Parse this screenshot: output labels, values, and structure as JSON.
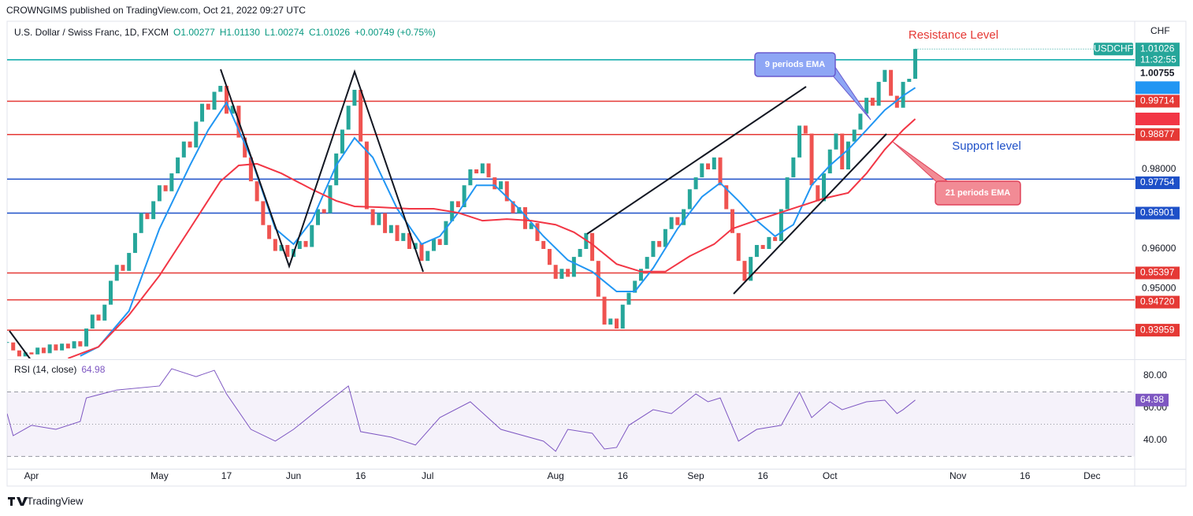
{
  "header": "CROWNGIMS published on TradingView.com, Oct 21, 2022 09:27 UTC",
  "footer": "TradingView",
  "chart_data": [
    {
      "type": "candlestick",
      "legend": {
        "symbol": "U.S. Dollar / Swiss Franc, 1D, FXCM",
        "open": "O1.00277",
        "high": "H1.01130",
        "low": "L1.00274",
        "close": "C1.01026",
        "change": "+0.00749 (+0.75%)"
      },
      "axis_unit": "CHF",
      "symbol_tag": "USDCHF",
      "countdown": "11:32:55",
      "xlim": [
        0,
        185
      ],
      "xticks": [
        {
          "value": 4,
          "label": "Apr"
        },
        {
          "value": 25,
          "label": "May"
        },
        {
          "value": 36,
          "label": "17"
        },
        {
          "value": 47,
          "label": "Jun"
        },
        {
          "value": 58,
          "label": "16"
        },
        {
          "value": 69,
          "label": "Jul"
        },
        {
          "value": 90,
          "label": "Aug"
        },
        {
          "value": 101,
          "label": "16"
        },
        {
          "value": 113,
          "label": "Sep"
        },
        {
          "value": 124,
          "label": "16"
        },
        {
          "value": 135,
          "label": "Oct"
        },
        {
          "value": 156,
          "label": "Nov"
        },
        {
          "value": 167,
          "label": "16"
        },
        {
          "value": 178,
          "label": "Dec"
        }
      ],
      "ylim": [
        0.93248,
        1.01703
      ],
      "yticks": [
        {
          "value": 0.98,
          "label": "0.98000"
        },
        {
          "value": 0.96,
          "label": "0.96000"
        },
        {
          "value": 0.95,
          "label": "0.95000"
        }
      ],
      "series": [
        {
          "name": "USDCHF",
          "up_color": "#26a69a",
          "down_color": "#ef5350",
          "x": [
            0,
            1,
            2,
            3,
            4,
            5,
            6,
            7,
            8,
            9,
            10,
            11,
            12,
            13,
            14,
            15,
            16,
            17,
            18,
            19,
            20,
            21,
            22,
            23,
            24,
            25,
            26,
            27,
            28,
            29,
            30,
            31,
            32,
            33,
            34,
            35,
            36,
            37,
            38,
            39,
            40,
            41,
            42,
            43,
            44,
            45,
            46,
            47,
            48,
            49,
            50,
            51,
            52,
            53,
            54,
            55,
            56,
            57,
            58,
            59,
            60,
            61,
            62,
            63,
            64,
            65,
            66,
            67,
            68,
            69,
            70,
            71,
            72,
            73,
            74,
            75,
            76,
            77,
            78,
            79,
            80,
            81,
            82,
            83,
            84,
            85,
            86,
            87,
            88,
            89,
            90,
            91,
            92,
            93,
            94,
            95,
            96,
            97,
            98,
            99,
            100,
            101,
            102,
            103,
            104,
            105,
            106,
            107,
            108,
            109,
            110,
            111,
            112,
            113,
            114,
            115,
            116,
            117,
            118,
            119,
            120,
            121,
            122,
            123,
            124,
            125,
            126,
            127,
            128,
            129,
            130,
            131,
            132,
            133,
            134,
            135,
            136,
            137,
            138,
            139,
            140,
            141,
            142,
            143,
            144,
            145,
            146,
            147,
            148,
            149
          ],
          "values": [
            0.9365,
            0.9345,
            0.933,
            0.934,
            0.9335,
            0.9352,
            0.9338,
            0.936,
            0.9345,
            0.9362,
            0.935,
            0.9368,
            0.9355,
            0.94,
            0.9435,
            0.942,
            0.946,
            0.952,
            0.956,
            0.9545,
            0.959,
            0.964,
            0.969,
            0.9675,
            0.972,
            0.976,
            0.9745,
            0.979,
            0.983,
            0.987,
            0.9855,
            0.992,
            0.9965,
            0.995,
            0.9995,
            1.001,
            0.994,
            0.996,
            0.988,
            0.983,
            0.977,
            0.972,
            0.966,
            0.9625,
            0.9595,
            0.961,
            0.958,
            0.96,
            0.962,
            0.9605,
            0.966,
            0.97,
            0.969,
            0.976,
            0.984,
            0.99,
            0.996,
            1.0,
            0.987,
            0.97,
            0.966,
            0.969,
            0.964,
            0.966,
            0.962,
            0.964,
            0.96,
            0.9615,
            0.957,
            0.9595,
            0.9625,
            0.961,
            0.967,
            0.972,
            0.9705,
            0.976,
            0.98,
            0.979,
            0.9815,
            0.978,
            0.975,
            0.977,
            0.972,
            0.969,
            0.9705,
            0.965,
            0.9665,
            0.962,
            0.96,
            0.956,
            0.9525,
            0.955,
            0.953,
            0.958,
            0.96,
            0.964,
            0.957,
            0.948,
            0.941,
            0.9425,
            0.94,
            0.946,
            0.949,
            0.952,
            0.955,
            0.958,
            0.962,
            0.9605,
            0.965,
            0.968,
            0.966,
            0.97,
            0.975,
            0.978,
            0.9815,
            0.98,
            0.983,
            0.976,
            0.97,
            0.964,
            0.957,
            0.952,
            0.958,
            0.961,
            0.96,
            0.963,
            0.962,
            0.97,
            0.978,
            0.983,
            0.991,
            0.989,
            0.976,
            0.972,
            0.979,
            0.985,
            0.989,
            0.98,
            0.987,
            0.99,
            0.994,
            0.998,
            0.996,
            1.002,
            1.005,
            0.9985,
            0.9955,
            1.002,
            1.00277,
            1.01026
          ]
        },
        {
          "name": "MA (9, close, 0)",
          "color": "#2196f3",
          "x": [
            12,
            15,
            20,
            25,
            30,
            33,
            36,
            40,
            44,
            47,
            50,
            54,
            57,
            60,
            64,
            68,
            71,
            74,
            77,
            80,
            84,
            88,
            92,
            96,
            100,
            103,
            106,
            110,
            114,
            117,
            120,
            123,
            126,
            129,
            132,
            135,
            138,
            141,
            144,
            147,
            149
          ],
          "values": [
            0.9331,
            0.9354,
            0.9444,
            0.9651,
            0.981,
            0.9899,
            0.9968,
            0.983,
            0.9651,
            0.9612,
            0.9671,
            0.981,
            0.9879,
            0.983,
            0.9701,
            0.9612,
            0.9632,
            0.9691,
            0.976,
            0.976,
            0.9701,
            0.9632,
            0.9572,
            0.9543,
            0.9493,
            0.9493,
            0.9552,
            0.9651,
            0.9731,
            0.9766,
            0.9721,
            0.9671,
            0.9632,
            0.9661,
            0.976,
            0.981,
            0.985,
            0.9899,
            0.9949,
            0.9985,
            1.00054
          ]
        },
        {
          "name": "MA (21, close, 0)",
          "color": "#f23645",
          "x": [
            10,
            15,
            20,
            25,
            30,
            35,
            38,
            41,
            45,
            50,
            54,
            57,
            61,
            66,
            70,
            74,
            78,
            82,
            86,
            90,
            93,
            96,
            100,
            104,
            108,
            112,
            116,
            119,
            122,
            126,
            130,
            134,
            138,
            141,
            144,
            147,
            149
          ],
          "values": [
            0.9325,
            0.9354,
            0.9434,
            0.9533,
            0.9651,
            0.977,
            0.981,
            0.9814,
            0.979,
            0.975,
            0.9721,
            0.9707,
            0.9705,
            0.9701,
            0.9701,
            0.9691,
            0.9671,
            0.9675,
            0.9671,
            0.9661,
            0.9642,
            0.9612,
            0.9562,
            0.9543,
            0.9543,
            0.9582,
            0.9612,
            0.9651,
            0.9667,
            0.9687,
            0.9707,
            0.9727,
            0.9741,
            0.979,
            0.985,
            0.9899,
            0.99268
          ]
        }
      ],
      "levels": [
        {
          "value": 1.00755,
          "color": "#00a6a6",
          "boxed": false
        },
        {
          "value": 0.99714,
          "color": "#e53935",
          "boxed": true
        },
        {
          "value": 0.98877,
          "color": "#e53935",
          "boxed": true
        },
        {
          "value": 0.97754,
          "color": "#1e50c8",
          "boxed": true
        },
        {
          "value": 0.96901,
          "color": "#1e50c8",
          "boxed": true
        },
        {
          "value": 0.95397,
          "color": "#e53935",
          "boxed": true
        },
        {
          "value": 0.9472,
          "label": "0.94720",
          "color": "#e53935",
          "boxed": true
        },
        {
          "value": 0.93959,
          "color": "#e53935",
          "boxed": true
        }
      ],
      "annotations": [
        "Resistance Level",
        "Support level",
        "9 periods EMA",
        "21 periods EMA"
      ]
    },
    {
      "type": "line",
      "xlim": [
        0,
        185
      ],
      "ylim": [
        22.4,
        89.3
      ],
      "yticks": [
        {
          "value": 80,
          "label": "80.00"
        },
        {
          "value": 60,
          "label": "60.00"
        },
        {
          "value": 40,
          "label": "40.00"
        }
      ],
      "levels": [
        70,
        50,
        30
      ],
      "series": [
        {
          "name": "RSI (14, close)",
          "color": "#7e57c2",
          "x": [
            0,
            1,
            4,
            8,
            12,
            13,
            18,
            25,
            27,
            31,
            34,
            36,
            40,
            44,
            47,
            51,
            56,
            58,
            63,
            67,
            71,
            76,
            81,
            88,
            90,
            92,
            96,
            98,
            100,
            102,
            106,
            109,
            113,
            115,
            117,
            120,
            123,
            127,
            130,
            132,
            135,
            137,
            141,
            144,
            146,
            147,
            149
          ],
          "values": [
            56.6,
            42.9,
            49.3,
            46.8,
            51.7,
            66.3,
            71.2,
            73.7,
            84.4,
            79.5,
            83.4,
            68.8,
            46.8,
            39.5,
            46.8,
            59,
            73.7,
            45.4,
            42,
            37.1,
            54.1,
            63.9,
            46.8,
            39.5,
            33.2,
            46.8,
            44.4,
            34.6,
            35.6,
            49.3,
            59,
            56.6,
            68.8,
            63.9,
            66.3,
            39.5,
            46.8,
            49.3,
            69.8,
            54.1,
            63.9,
            59,
            63.9,
            64.9,
            56.6,
            59,
            64.98
          ]
        }
      ]
    }
  ]
}
